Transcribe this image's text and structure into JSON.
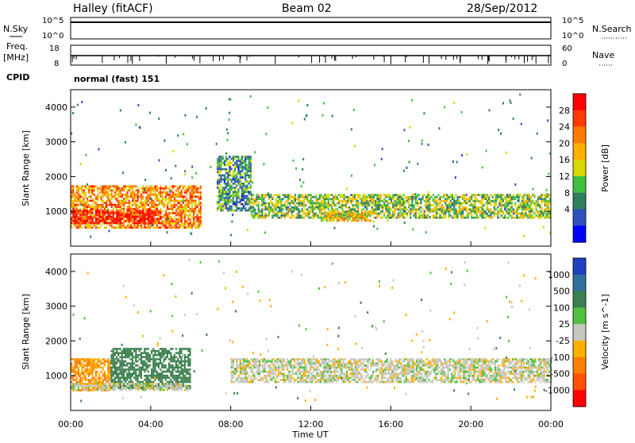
{
  "header": {
    "station": "Halley (fitACF)",
    "beam": "Beam 02",
    "date": "28/Sep/2012"
  },
  "noise_panel": {
    "left_label": "N.Sky",
    "right_label": "N.Search",
    "left_ticks": [
      "10^5",
      "10^0"
    ],
    "right_ticks": [
      "10^5",
      "10^0"
    ]
  },
  "freq_panel": {
    "left_label_1": "Freq.",
    "left_label_2": "[MHz]",
    "right_label": "Nave",
    "left_ticks": [
      "18",
      "8"
    ],
    "right_ticks": [
      "60",
      "0"
    ]
  },
  "cpid": {
    "label": "CPID",
    "value": "normal (fast) 151"
  },
  "power_panel": {
    "ylabel": "Slant Range [km]",
    "colorbar_label": "Power [dB]",
    "colorbar_ticks": [
      "28",
      "24",
      "20",
      "16",
      "12",
      "8",
      "4"
    ],
    "colorbar_colors": [
      "#ff0000",
      "#ff3a00",
      "#ff7a00",
      "#ffb000",
      "#d8d800",
      "#40c040",
      "#308060",
      "#3050c0",
      "#0000ff"
    ]
  },
  "velocity_panel": {
    "ylabel": "Slant Range [km]",
    "colorbar_label": "Velocity [m s^-1]",
    "colorbar_ticks": [
      "1000",
      "500",
      "100",
      "25",
      "-25",
      "-100",
      "-500",
      "-1000"
    ],
    "colorbar_colors": [
      "#2040c0",
      "#3070a0",
      "#3d8050",
      "#50c040",
      "#c8c8c0",
      "#ffb000",
      "#ff8000",
      "#ff5000",
      "#ff0000"
    ]
  },
  "x_axis": {
    "label": "Time UT",
    "ticks": [
      "00:00",
      "04:00",
      "08:00",
      "12:00",
      "16:00",
      "20:00",
      "00:00"
    ]
  },
  "chart_data": {
    "type": "heatmap",
    "x_unit": "hours UT",
    "xlim": [
      0,
      24
    ],
    "ylim": [
      0,
      4500
    ],
    "y_ticks": [
      1000,
      2000,
      3000,
      4000
    ],
    "power_regions": [
      {
        "t0": 0.0,
        "t1": 6.5,
        "r0": 550,
        "r1": 1750,
        "level": 20
      },
      {
        "t0": 0.0,
        "t1": 4.5,
        "r0": 650,
        "r1": 1050,
        "level": 28
      },
      {
        "t0": 7.3,
        "t1": 9.0,
        "r0": 1000,
        "r1": 2600,
        "level": 8
      },
      {
        "t0": 9.0,
        "t1": 24.0,
        "r0": 800,
        "r1": 1500,
        "level": 12
      },
      {
        "t0": 12.5,
        "t1": 15.0,
        "r0": 750,
        "r1": 1000,
        "level": 16
      }
    ],
    "velocity_regions": [
      {
        "t0": 0.0,
        "t1": 2.0,
        "r0": 600,
        "r1": 1500,
        "level": -100
      },
      {
        "t0": 2.0,
        "t1": 6.0,
        "r0": 650,
        "r1": 1800,
        "level": 100
      },
      {
        "t0": 0.0,
        "t1": 6.0,
        "r0": 600,
        "r1": 800,
        "level": 0
      },
      {
        "t0": 8.0,
        "t1": 24.0,
        "r0": 800,
        "r1": 1500,
        "level": 0
      }
    ]
  }
}
